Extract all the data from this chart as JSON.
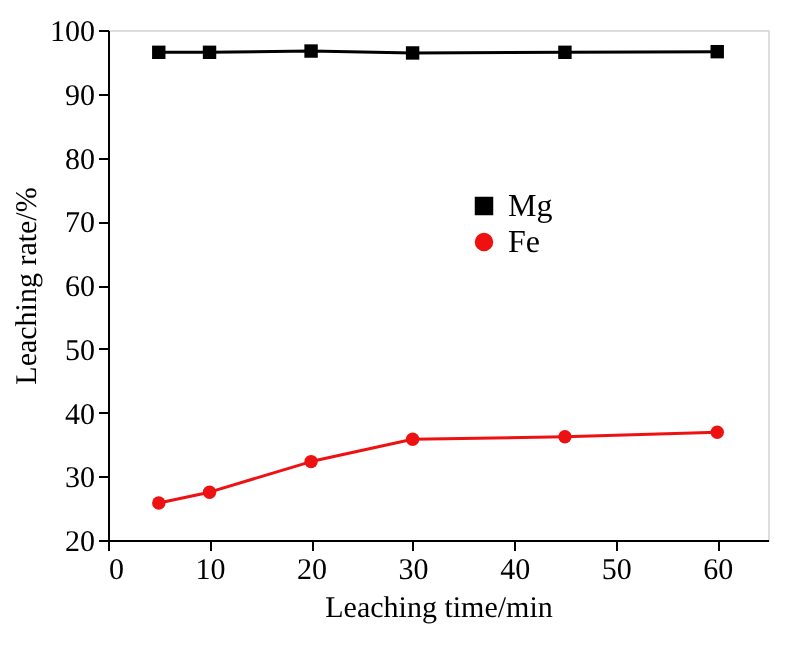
{
  "chart_data": {
    "type": "line",
    "xlabel": "Leaching time/min",
    "ylabel": "Leaching rate/%",
    "x": [
      5,
      10,
      20,
      30,
      45,
      60
    ],
    "series": [
      {
        "name": "Mg",
        "color": "#000000",
        "marker": "square",
        "values": [
          96.5,
          96.5,
          96.7,
          96.4,
          96.5,
          96.6
        ]
      },
      {
        "name": "Fe",
        "color": "#ee1111",
        "marker": "circle",
        "values": [
          25.8,
          27.5,
          32.3,
          35.8,
          36.2,
          36.9
        ]
      }
    ],
    "xlim": [
      0,
      65
    ],
    "xticks": [
      0,
      10,
      20,
      30,
      40,
      50,
      60
    ],
    "ylim": [
      20,
      100
    ],
    "yticks": [
      20,
      30,
      40,
      50,
      60,
      70,
      80,
      90,
      100
    ],
    "grid": false,
    "legend": "top right",
    "line_style": "solid"
  }
}
